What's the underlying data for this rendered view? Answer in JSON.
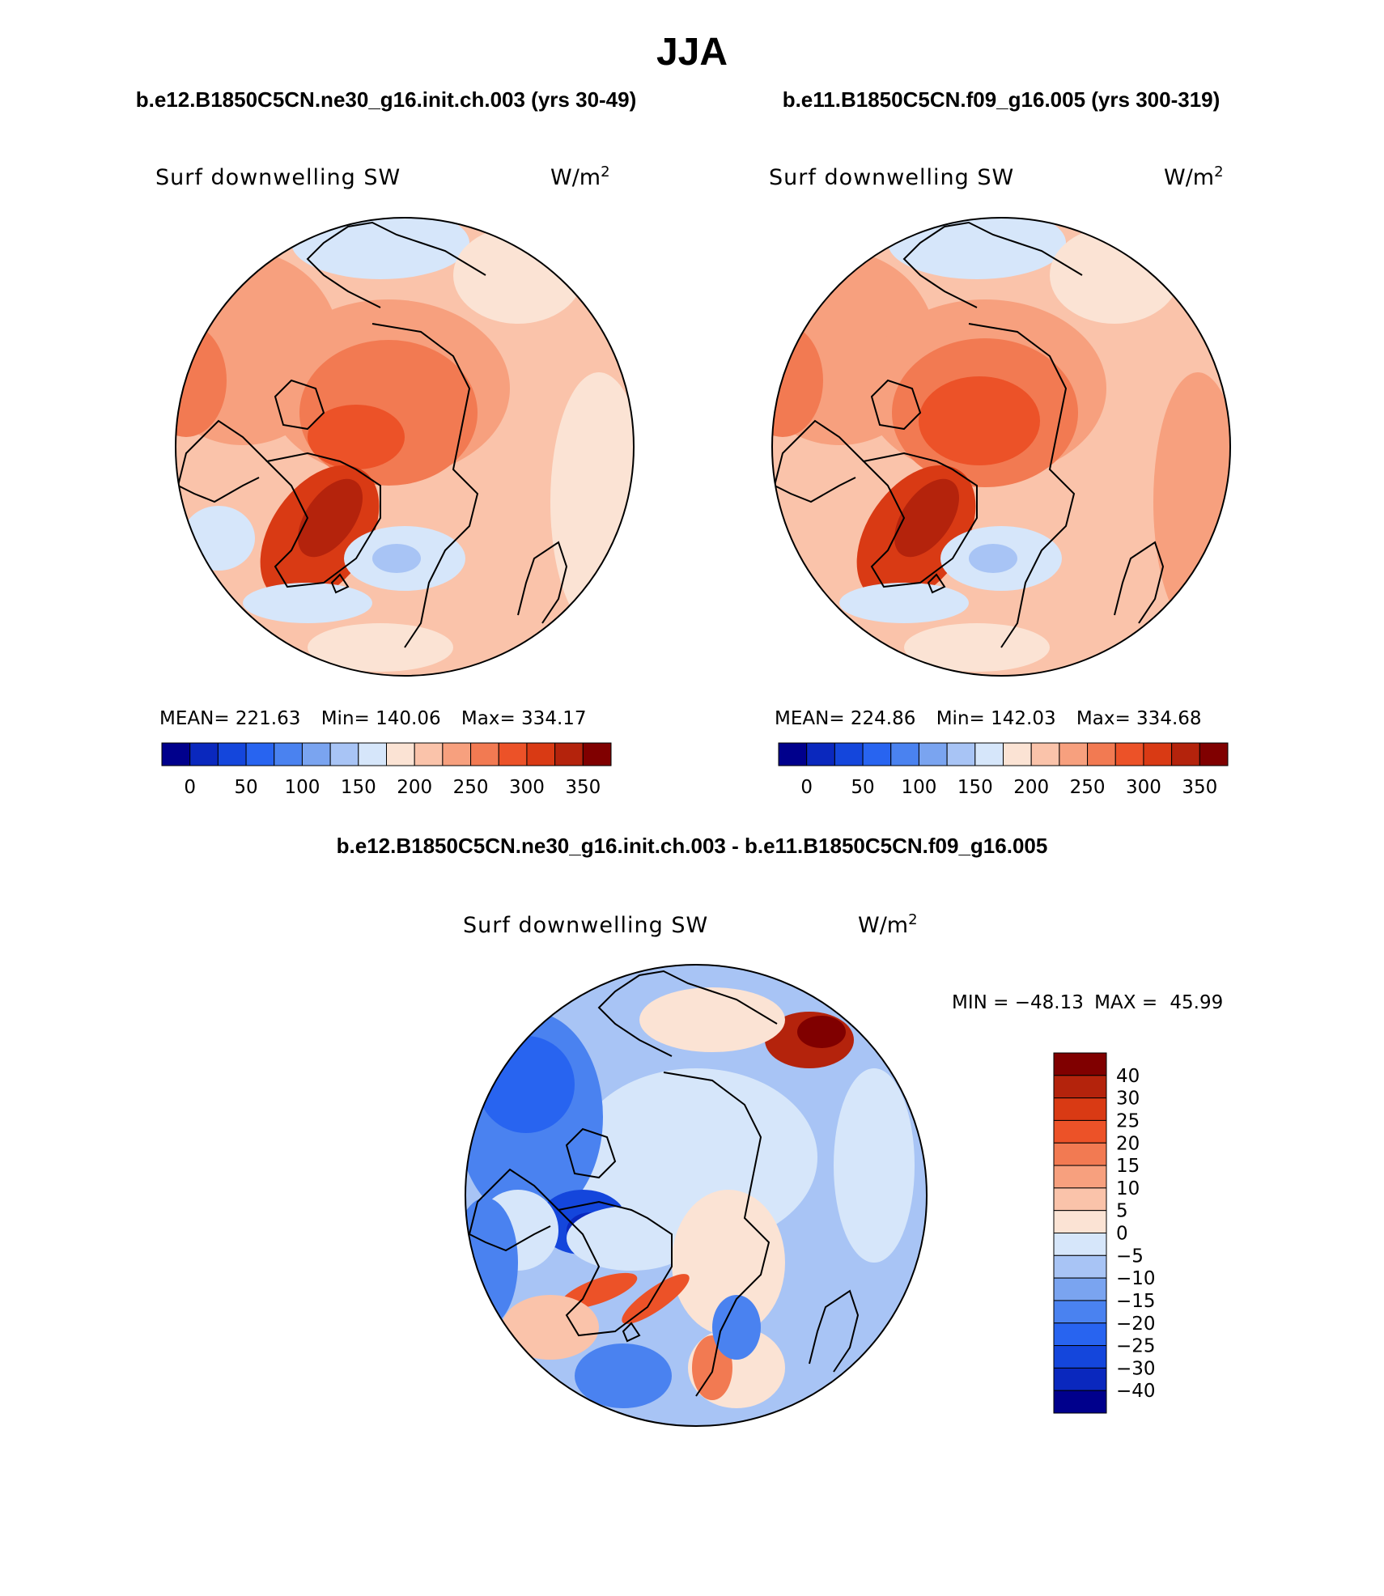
{
  "figure": {
    "title": "JJA"
  },
  "panels": [
    {
      "header": "b.e12.B1850C5CN.ne30_g16.init.ch.003 (yrs 30-49)",
      "variable": "Surf downwelling SW",
      "units_base": "W/m",
      "units_exp": "2",
      "stats": {
        "mean_label": "MEAN=",
        "mean": "221.63",
        "min_label": "Min=",
        "min": "140.06",
        "max_label": "Max=",
        "max": "334.17"
      }
    },
    {
      "header": "b.e11.B1850C5CN.f09_g16.005 (yrs 300-319)",
      "variable": "Surf downwelling SW",
      "units_base": "W/m",
      "units_exp": "2",
      "stats": {
        "mean_label": "MEAN=",
        "mean": "224.86",
        "min_label": "Min=",
        "min": "142.03",
        "max_label": "Max=",
        "max": "334.68"
      }
    }
  ],
  "difference": {
    "header": "b.e12.B1850C5CN.ne30_g16.init.ch.003 - b.e11.B1850C5CN.f09_g16.005",
    "variable": "Surf downwelling SW",
    "units_base": "W/m",
    "units_exp": "2",
    "min_label": "MIN =",
    "min": "−48.13",
    "max_label": "MAX =",
    "max": "45.99"
  },
  "colorbars": {
    "absolute": {
      "colors": [
        "#00008c",
        "#0a28be",
        "#1446dc",
        "#2864f0",
        "#4a82f0",
        "#7aa4f0",
        "#a8c4f5",
        "#d6e6fa",
        "#fbe3d4",
        "#fac3aa",
        "#f7a07e",
        "#f27a52",
        "#ec5228",
        "#d93a14",
        "#b4230c",
        "#800000"
      ],
      "tick_labels": [
        "0",
        "50",
        "100",
        "150",
        "200",
        "250",
        "300",
        "350"
      ]
    },
    "difference": {
      "colors": [
        "#00008c",
        "#0a28be",
        "#1446dc",
        "#2864f0",
        "#4a82f0",
        "#7aa4f0",
        "#a8c4f5",
        "#d6e6fa",
        "#fbe3d4",
        "#fac3aa",
        "#f7a07e",
        "#f27a52",
        "#ec5228",
        "#d93a14",
        "#b4230c",
        "#800000"
      ],
      "tick_labels": [
        "40",
        "30",
        "25",
        "20",
        "15",
        "10",
        "5",
        "0",
        "−5",
        "−10",
        "−15",
        "−20",
        "−25",
        "−30",
        "−40"
      ]
    }
  },
  "map_colors": {
    "coast": "#000000",
    "deep_red": "#b4230c",
    "red": "#d93a14",
    "orange_red": "#ec5228",
    "orange": "#f27a52",
    "salmon": "#f7a07e",
    "light_salmon": "#fac3aa",
    "peach": "#fbe3d4",
    "pale_blue": "#d6e6fa",
    "light_blue": "#a8c4f5",
    "mid_blue": "#7aa4f0",
    "blue": "#4a82f0",
    "strong_blue": "#2864f0",
    "deep_blue": "#1446dc"
  }
}
